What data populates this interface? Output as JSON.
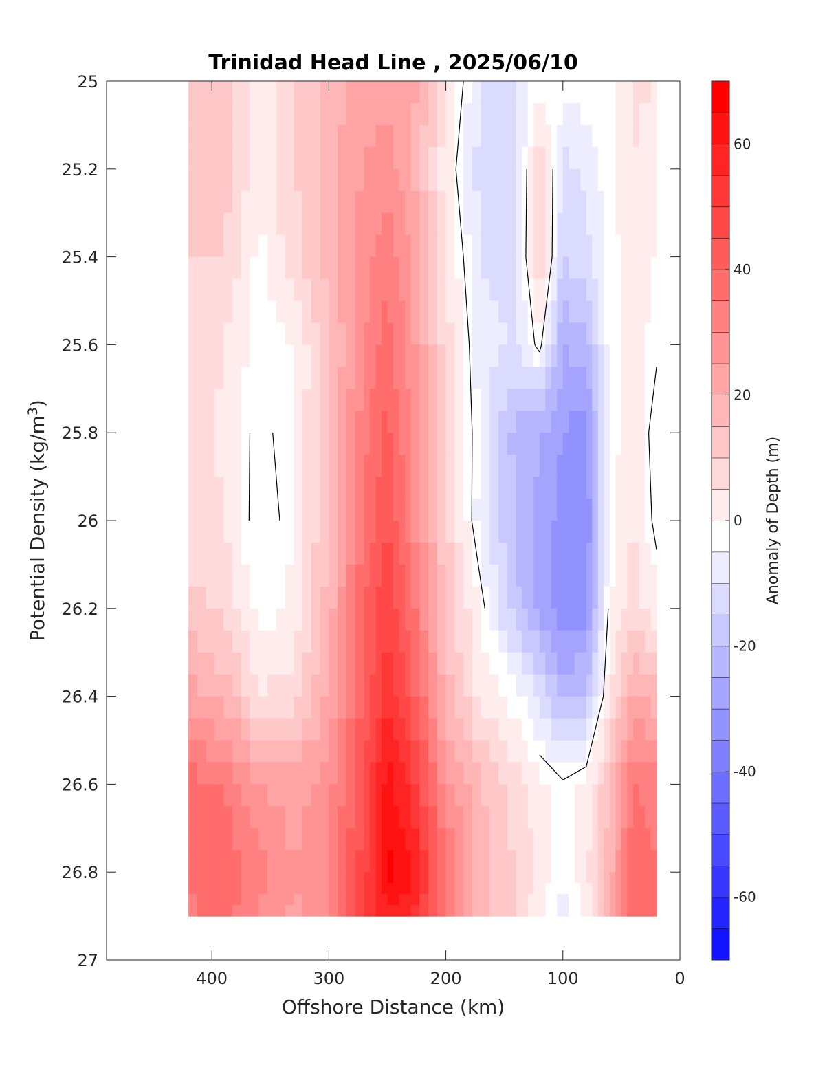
{
  "chart_data": {
    "type": "heatmap",
    "title": "Trinidad Head Line , 2025/06/10",
    "xlabel": "Offshore Distance (km)",
    "ylabel": "Potential Density (kg/m",
    "ylabel_superscript": "3",
    "ylabel_suffix": ")",
    "xlim": [
      490,
      0
    ],
    "ylim": [
      25,
      27
    ],
    "x_reversed": true,
    "y_reversed": true,
    "xticks": [
      400,
      300,
      200,
      100,
      0
    ],
    "yticks": [
      25,
      25.2,
      25.4,
      25.6,
      25.8,
      26,
      26.2,
      26.4,
      26.6,
      26.8,
      27
    ],
    "ytick_labels": [
      "25",
      "25.2",
      "25.4",
      "25.6",
      "25.8",
      "26",
      "26.2",
      "26.4",
      "26.6",
      "26.8",
      "27"
    ],
    "colorbar": {
      "label": "Anomaly of Depth (m)",
      "range": [
        -70,
        70
      ],
      "step": 5,
      "ticks": [
        60,
        40,
        20,
        0,
        -20,
        -40,
        -60
      ],
      "tick_labels": [
        "60",
        "40",
        "20",
        "0",
        "-20",
        "-40",
        "-60"
      ],
      "min_color": "#0000ff",
      "mid_color": "#ffffff",
      "max_color": "#ff0000"
    },
    "x": [
      420,
      390,
      360,
      330,
      300,
      270,
      250,
      230,
      200,
      170,
      140,
      120,
      100,
      80,
      60,
      40,
      20
    ],
    "y": [
      25,
      25.2,
      25.4,
      25.6,
      25.8,
      26,
      26.2,
      26.4,
      26.6,
      26.8,
      26.9
    ],
    "z": [
      [
        12,
        17,
        4,
        12,
        20,
        25,
        26,
        25,
        8,
        -8,
        -8,
        0,
        0,
        0,
        0,
        8,
        8
      ],
      [
        12,
        17,
        4,
        12,
        20,
        28,
        30,
        24,
        4,
        -10,
        -10,
        12,
        -9,
        -6,
        0,
        8,
        3
      ],
      [
        13,
        12,
        1,
        10,
        20,
        30,
        36,
        28,
        8,
        -8,
        -10,
        14,
        -12,
        -10,
        0,
        6,
        2
      ],
      [
        10,
        8,
        0,
        2,
        16,
        32,
        40,
        30,
        10,
        -5,
        -8,
        2,
        -22,
        -20,
        0,
        4,
        1
      ],
      [
        10,
        6,
        -2,
        3,
        16,
        36,
        44,
        32,
        12,
        -4,
        -20,
        -22,
        -28,
        -30,
        0,
        6,
        -3
      ],
      [
        10,
        8,
        -3,
        2,
        18,
        38,
        48,
        34,
        14,
        -5,
        -18,
        -24,
        -30,
        -32,
        0,
        8,
        -2
      ],
      [
        14,
        12,
        0,
        4,
        20,
        42,
        52,
        40,
        16,
        2,
        -16,
        -24,
        -32,
        -30,
        2,
        10,
        4
      ],
      [
        25,
        20,
        8,
        10,
        24,
        44,
        56,
        46,
        20,
        6,
        0,
        -8,
        -20,
        -16,
        6,
        24,
        20
      ],
      [
        40,
        38,
        28,
        25,
        30,
        48,
        65,
        56,
        30,
        18,
        10,
        4,
        1,
        4,
        18,
        38,
        35
      ],
      [
        38,
        42,
        34,
        28,
        32,
        50,
        70,
        64,
        38,
        20,
        12,
        6,
        0,
        6,
        20,
        42,
        38
      ],
      [
        36,
        40,
        32,
        26,
        32,
        52,
        60,
        60,
        36,
        20,
        12,
        4,
        -6,
        4,
        20,
        42,
        40
      ]
    ],
    "contour_levels": [
      0
    ]
  }
}
